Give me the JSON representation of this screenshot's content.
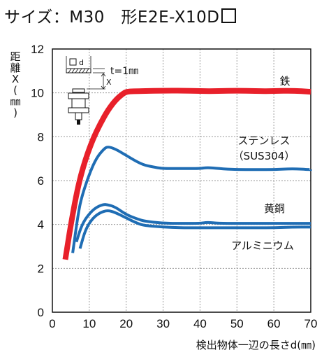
{
  "header": {
    "title": "サイズ：M30　形E2E-X10D"
  },
  "chart_data": {
    "type": "line",
    "title": "サイズ：M30　形E2E-X10D",
    "xlabel": "検出物体一辺の長さd(㎜)",
    "ylabel": "距離X(㎜)",
    "ylabel_chars": [
      "距",
      "離",
      "X",
      "(",
      "㎜",
      ")"
    ],
    "xlim": [
      0,
      70
    ],
    "ylim": [
      0,
      12
    ],
    "xticks": [
      0,
      10,
      20,
      30,
      40,
      50,
      60,
      70
    ],
    "yticks": [
      0,
      2,
      4,
      6,
      8,
      10,
      12
    ],
    "grid": true,
    "inset": {
      "d_label": "d",
      "x_label": "X",
      "t_label": "t=1㎜"
    },
    "series": [
      {
        "name": "鉄",
        "color": "#e8202a",
        "x": [
          3.5,
          5,
          7,
          9,
          11,
          13,
          15,
          17,
          19,
          20,
          22,
          25,
          30,
          35,
          40,
          45,
          50,
          55,
          60,
          65,
          70
        ],
        "y": [
          2.4,
          4.0,
          5.8,
          7.0,
          7.9,
          8.6,
          9.2,
          9.65,
          9.95,
          10.05,
          10.08,
          10.08,
          10.1,
          10.1,
          10.08,
          10.08,
          10.1,
          10.08,
          10.08,
          10.1,
          10.05
        ]
      },
      {
        "name": "ステンレス（SUS304）",
        "color": "#1f6db4",
        "x": [
          5.5,
          7,
          8,
          10,
          12,
          14,
          15,
          17,
          20,
          23,
          25,
          28,
          30,
          35,
          40,
          42,
          45,
          50,
          55,
          60,
          65,
          70
        ],
        "y": [
          2.7,
          4.5,
          5.3,
          6.3,
          7.05,
          7.45,
          7.55,
          7.45,
          7.15,
          6.85,
          6.7,
          6.6,
          6.55,
          6.55,
          6.55,
          6.6,
          6.55,
          6.5,
          6.5,
          6.5,
          6.55,
          6.5
        ]
      },
      {
        "name": "黄銅",
        "color": "#1f6db4",
        "x": [
          6.5,
          8,
          10,
          12,
          14,
          15,
          17,
          20,
          23,
          25,
          30,
          35,
          40,
          42,
          45,
          50,
          55,
          60,
          65,
          70
        ],
        "y": [
          3.2,
          4.0,
          4.5,
          4.8,
          4.92,
          4.9,
          4.8,
          4.45,
          4.25,
          4.15,
          4.05,
          4.05,
          4.05,
          4.1,
          4.05,
          4.05,
          4.05,
          4.05,
          4.05,
          4.05
        ]
      },
      {
        "name": "アルミニウム",
        "color": "#1f6db4",
        "x": [
          7.5,
          9,
          11,
          13,
          15,
          17,
          20,
          23,
          25,
          30,
          35,
          40,
          45,
          50,
          55,
          60,
          65,
          70
        ],
        "y": [
          2.9,
          3.8,
          4.3,
          4.55,
          4.65,
          4.55,
          4.3,
          4.05,
          3.95,
          3.88,
          3.85,
          3.85,
          3.85,
          3.85,
          3.85,
          3.85,
          3.88,
          3.88
        ]
      }
    ]
  }
}
